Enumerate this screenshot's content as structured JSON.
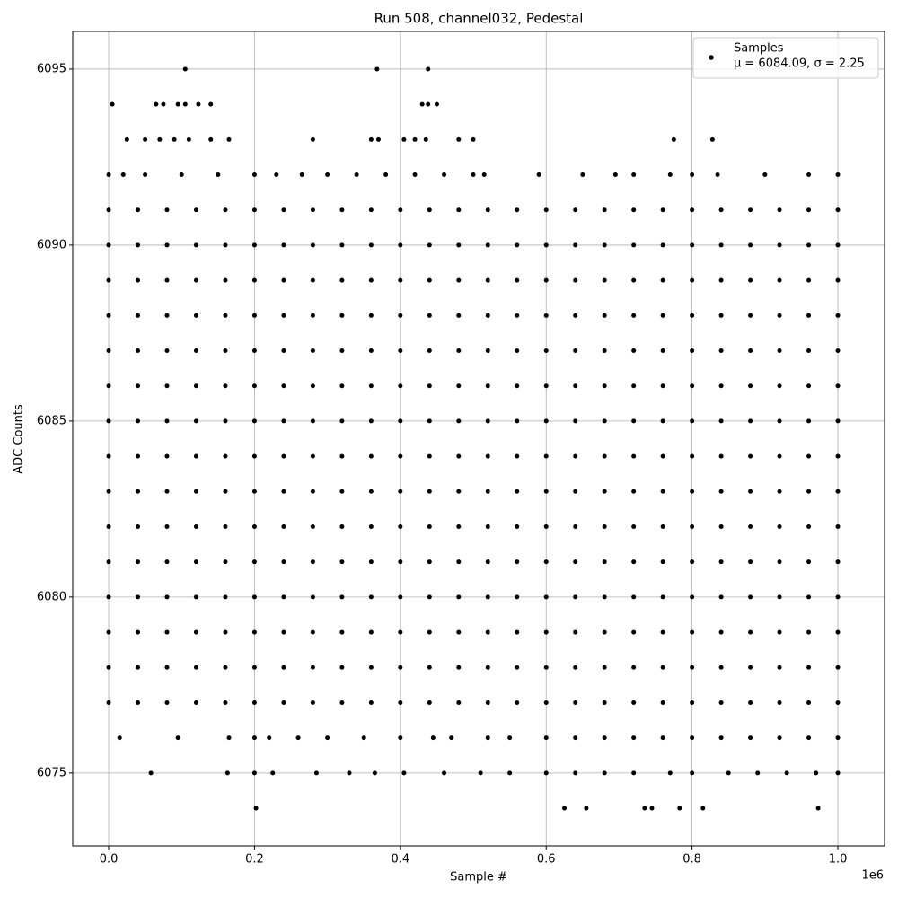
{
  "chart_data": {
    "type": "scatter",
    "title": "Run 508, channel032, Pedestal",
    "x_label": "Sample #",
    "y_label": "ADC Counts",
    "x_offset_label": "1e6",
    "xlim": [
      -49300,
      1064000
    ],
    "ylim": [
      6072.93,
      6096.07
    ],
    "xticks": [
      {
        "value": 0,
        "label": "0.0"
      },
      {
        "value": 200000,
        "label": "0.2"
      },
      {
        "value": 400000,
        "label": "0.4"
      },
      {
        "value": 600000,
        "label": "0.6"
      },
      {
        "value": 800000,
        "label": "0.8"
      },
      {
        "value": 1000000,
        "label": "1.0"
      }
    ],
    "yticks": [
      6075,
      6080,
      6085,
      6090,
      6095
    ],
    "grid": true,
    "legend_position": "upper right",
    "legend_stats": "μ = 6084.09, σ = 2.25",
    "series": [
      {
        "name": "Samples",
        "color": "#000000",
        "x": [
          105000,
          368000,
          438000,
          5000,
          65000,
          75000,
          95000,
          105000,
          123000,
          140000,
          430000,
          438000,
          450000,
          25000,
          50000,
          70000,
          90000,
          110000,
          140000,
          165000,
          280000,
          360000,
          370000,
          405000,
          420000,
          435000,
          480000,
          500000,
          775000,
          828000,
          0,
          20000,
          50000,
          100000,
          150000,
          200000,
          230000,
          265000,
          300000,
          340000,
          380000,
          420000,
          460000,
          500000,
          515000,
          590000,
          650000,
          695000,
          720000,
          770000,
          800000,
          835000,
          900000,
          960000,
          1000000,
          15000,
          95000,
          165000,
          200000,
          220000,
          260000,
          300000,
          350000,
          400000,
          445000,
          470000,
          520000,
          550000,
          600000,
          640000,
          680000,
          720000,
          760000,
          800000,
          840000,
          880000,
          920000,
          960000,
          1000000,
          58000,
          163000,
          200000,
          225000,
          285000,
          330000,
          365000,
          405000,
          460000,
          510000,
          550000,
          600000,
          640000,
          680000,
          720000,
          770000,
          800000,
          850000,
          890000,
          930000,
          970000,
          1000000,
          202000,
          625000,
          655000,
          735000,
          745000,
          783000,
          815000,
          973000,
          0,
          40000,
          80000,
          120000,
          160000,
          200000,
          240000,
          280000,
          320000,
          360000,
          400000,
          440000,
          480000,
          520000,
          560000,
          600000,
          640000,
          680000,
          720000,
          760000,
          800000,
          840000,
          880000,
          920000,
          960000,
          1000000,
          0,
          40000,
          80000,
          120000,
          160000,
          200000,
          240000,
          280000,
          320000,
          360000,
          400000,
          440000,
          480000,
          520000,
          560000,
          600000,
          640000,
          680000,
          720000,
          760000,
          800000,
          840000,
          880000,
          920000,
          960000,
          1000000,
          0,
          40000,
          80000,
          120000,
          160000,
          200000,
          240000,
          280000,
          320000,
          360000,
          400000,
          440000,
          480000,
          520000,
          560000,
          600000,
          640000,
          680000,
          720000,
          760000,
          800000,
          840000,
          880000,
          920000,
          960000,
          1000000,
          0,
          40000,
          80000,
          120000,
          160000,
          200000,
          240000,
          280000,
          320000,
          360000,
          400000,
          440000,
          480000,
          520000,
          560000,
          600000,
          640000,
          680000,
          720000,
          760000,
          800000,
          840000,
          880000,
          920000,
          960000,
          1000000,
          0,
          40000,
          80000,
          120000,
          160000,
          200000,
          240000,
          280000,
          320000,
          360000,
          400000,
          440000,
          480000,
          520000,
          560000,
          600000,
          640000,
          680000,
          720000,
          760000,
          800000,
          840000,
          880000,
          920000,
          960000,
          1000000,
          0,
          40000,
          80000,
          120000,
          160000,
          200000,
          240000,
          280000,
          320000,
          360000,
          400000,
          440000,
          480000,
          520000,
          560000,
          600000,
          640000,
          680000,
          720000,
          760000,
          800000,
          840000,
          880000,
          920000,
          960000,
          1000000,
          0,
          40000,
          80000,
          120000,
          160000,
          200000,
          240000,
          280000,
          320000,
          360000,
          400000,
          440000,
          480000,
          520000,
          560000,
          600000,
          640000,
          680000,
          720000,
          760000,
          800000,
          840000,
          880000,
          920000,
          960000,
          1000000,
          0,
          40000,
          80000,
          120000,
          160000,
          200000,
          240000,
          280000,
          320000,
          360000,
          400000,
          440000,
          480000,
          520000,
          560000,
          600000,
          640000,
          680000,
          720000,
          760000,
          800000,
          840000,
          880000,
          920000,
          960000,
          1000000,
          0,
          40000,
          80000,
          120000,
          160000,
          200000,
          240000,
          280000,
          320000,
          360000,
          400000,
          440000,
          480000,
          520000,
          560000,
          600000,
          640000,
          680000,
          720000,
          760000,
          800000,
          840000,
          880000,
          920000,
          960000,
          1000000,
          0,
          40000,
          80000,
          120000,
          160000,
          200000,
          240000,
          280000,
          320000,
          360000,
          400000,
          440000,
          480000,
          520000,
          560000,
          600000,
          640000,
          680000,
          720000,
          760000,
          800000,
          840000,
          880000,
          920000,
          960000,
          1000000,
          0,
          40000,
          80000,
          120000,
          160000,
          200000,
          240000,
          280000,
          320000,
          360000,
          400000,
          440000,
          480000,
          520000,
          560000,
          600000,
          640000,
          680000,
          720000,
          760000,
          800000,
          840000,
          880000,
          920000,
          960000,
          1000000,
          0,
          40000,
          80000,
          120000,
          160000,
          200000,
          240000,
          280000,
          320000,
          360000,
          400000,
          440000,
          480000,
          520000,
          560000,
          600000,
          640000,
          680000,
          720000,
          760000,
          800000,
          840000,
          880000,
          920000,
          960000,
          1000000,
          0,
          40000,
          80000,
          120000,
          160000,
          200000,
          240000,
          280000,
          320000,
          360000,
          400000,
          440000,
          480000,
          520000,
          560000,
          600000,
          640000,
          680000,
          720000,
          760000,
          800000,
          840000,
          880000,
          920000,
          960000,
          1000000,
          0,
          40000,
          80000,
          120000,
          160000,
          200000,
          240000,
          280000,
          320000,
          360000,
          400000,
          440000,
          480000,
          520000,
          560000,
          600000,
          640000,
          680000,
          720000,
          760000,
          800000,
          840000,
          880000,
          920000,
          960000,
          1000000,
          0,
          40000,
          80000,
          120000,
          160000,
          200000,
          240000,
          280000,
          320000,
          360000,
          400000,
          440000,
          480000,
          520000,
          560000,
          600000,
          640000,
          680000,
          720000,
          760000,
          800000,
          840000,
          880000,
          920000,
          960000,
          1000000
        ],
        "y": [
          6095,
          6095,
          6095,
          6094,
          6094,
          6094,
          6094,
          6094,
          6094,
          6094,
          6094,
          6094,
          6094,
          6093,
          6093,
          6093,
          6093,
          6093,
          6093,
          6093,
          6093,
          6093,
          6093,
          6093,
          6093,
          6093,
          6093,
          6093,
          6093,
          6093,
          6092,
          6092,
          6092,
          6092,
          6092,
          6092,
          6092,
          6092,
          6092,
          6092,
          6092,
          6092,
          6092,
          6092,
          6092,
          6092,
          6092,
          6092,
          6092,
          6092,
          6092,
          6092,
          6092,
          6092,
          6092,
          6076,
          6076,
          6076,
          6076,
          6076,
          6076,
          6076,
          6076,
          6076,
          6076,
          6076,
          6076,
          6076,
          6076,
          6076,
          6076,
          6076,
          6076,
          6076,
          6076,
          6076,
          6076,
          6076,
          6076,
          6075,
          6075,
          6075,
          6075,
          6075,
          6075,
          6075,
          6075,
          6075,
          6075,
          6075,
          6075,
          6075,
          6075,
          6075,
          6075,
          6075,
          6075,
          6075,
          6075,
          6075,
          6075,
          6074,
          6074,
          6074,
          6074,
          6074,
          6074,
          6074,
          6074,
          6091,
          6091,
          6091,
          6091,
          6091,
          6091,
          6091,
          6091,
          6091,
          6091,
          6091,
          6091,
          6091,
          6091,
          6091,
          6091,
          6091,
          6091,
          6091,
          6091,
          6091,
          6091,
          6091,
          6091,
          6091,
          6091,
          6090,
          6090,
          6090,
          6090,
          6090,
          6090,
          6090,
          6090,
          6090,
          6090,
          6090,
          6090,
          6090,
          6090,
          6090,
          6090,
          6090,
          6090,
          6090,
          6090,
          6090,
          6090,
          6090,
          6090,
          6090,
          6090,
          6089,
          6089,
          6089,
          6089,
          6089,
          6089,
          6089,
          6089,
          6089,
          6089,
          6089,
          6089,
          6089,
          6089,
          6089,
          6089,
          6089,
          6089,
          6089,
          6089,
          6089,
          6089,
          6089,
          6089,
          6089,
          6089,
          6088,
          6088,
          6088,
          6088,
          6088,
          6088,
          6088,
          6088,
          6088,
          6088,
          6088,
          6088,
          6088,
          6088,
          6088,
          6088,
          6088,
          6088,
          6088,
          6088,
          6088,
          6088,
          6088,
          6088,
          6088,
          6088,
          6087,
          6087,
          6087,
          6087,
          6087,
          6087,
          6087,
          6087,
          6087,
          6087,
          6087,
          6087,
          6087,
          6087,
          6087,
          6087,
          6087,
          6087,
          6087,
          6087,
          6087,
          6087,
          6087,
          6087,
          6087,
          6087,
          6086,
          6086,
          6086,
          6086,
          6086,
          6086,
          6086,
          6086,
          6086,
          6086,
          6086,
          6086,
          6086,
          6086,
          6086,
          6086,
          6086,
          6086,
          6086,
          6086,
          6086,
          6086,
          6086,
          6086,
          6086,
          6086,
          6085,
          6085,
          6085,
          6085,
          6085,
          6085,
          6085,
          6085,
          6085,
          6085,
          6085,
          6085,
          6085,
          6085,
          6085,
          6085,
          6085,
          6085,
          6085,
          6085,
          6085,
          6085,
          6085,
          6085,
          6085,
          6085,
          6084,
          6084,
          6084,
          6084,
          6084,
          6084,
          6084,
          6084,
          6084,
          6084,
          6084,
          6084,
          6084,
          6084,
          6084,
          6084,
          6084,
          6084,
          6084,
          6084,
          6084,
          6084,
          6084,
          6084,
          6084,
          6084,
          6083,
          6083,
          6083,
          6083,
          6083,
          6083,
          6083,
          6083,
          6083,
          6083,
          6083,
          6083,
          6083,
          6083,
          6083,
          6083,
          6083,
          6083,
          6083,
          6083,
          6083,
          6083,
          6083,
          6083,
          6083,
          6083,
          6082,
          6082,
          6082,
          6082,
          6082,
          6082,
          6082,
          6082,
          6082,
          6082,
          6082,
          6082,
          6082,
          6082,
          6082,
          6082,
          6082,
          6082,
          6082,
          6082,
          6082,
          6082,
          6082,
          6082,
          6082,
          6082,
          6081,
          6081,
          6081,
          6081,
          6081,
          6081,
          6081,
          6081,
          6081,
          6081,
          6081,
          6081,
          6081,
          6081,
          6081,
          6081,
          6081,
          6081,
          6081,
          6081,
          6081,
          6081,
          6081,
          6081,
          6081,
          6081,
          6080,
          6080,
          6080,
          6080,
          6080,
          6080,
          6080,
          6080,
          6080,
          6080,
          6080,
          6080,
          6080,
          6080,
          6080,
          6080,
          6080,
          6080,
          6080,
          6080,
          6080,
          6080,
          6080,
          6080,
          6080,
          6080,
          6079,
          6079,
          6079,
          6079,
          6079,
          6079,
          6079,
          6079,
          6079,
          6079,
          6079,
          6079,
          6079,
          6079,
          6079,
          6079,
          6079,
          6079,
          6079,
          6079,
          6079,
          6079,
          6079,
          6079,
          6079,
          6079,
          6078,
          6078,
          6078,
          6078,
          6078,
          6078,
          6078,
          6078,
          6078,
          6078,
          6078,
          6078,
          6078,
          6078,
          6078,
          6078,
          6078,
          6078,
          6078,
          6078,
          6078,
          6078,
          6078,
          6078,
          6078,
          6078,
          6077,
          6077,
          6077,
          6077,
          6077,
          6077,
          6077,
          6077,
          6077,
          6077,
          6077,
          6077,
          6077,
          6077,
          6077,
          6077,
          6077,
          6077,
          6077,
          6077,
          6077,
          6077,
          6077,
          6077,
          6077,
          6077
        ]
      }
    ]
  }
}
